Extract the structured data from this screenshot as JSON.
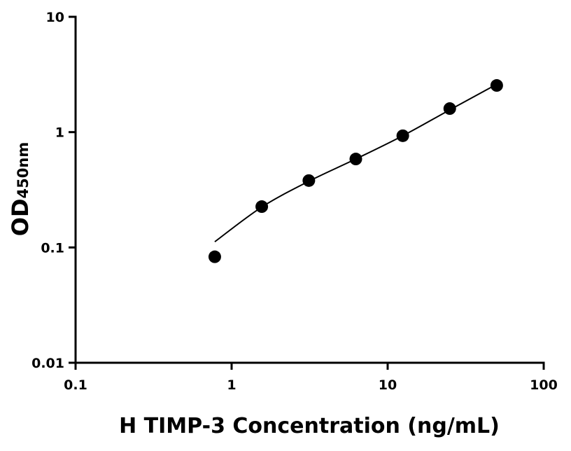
{
  "chart_data": {
    "type": "scatter",
    "title": "",
    "xlabel": "H TIMP-3 Concentration (ng/mL)",
    "ylabel": "OD",
    "ylabel_subscript": "450nm",
    "xscale": "log",
    "yscale": "log",
    "xlim": [
      0.1,
      100
    ],
    "ylim": [
      0.01,
      10
    ],
    "xticks": [
      "0.1",
      "1",
      "10",
      "100"
    ],
    "yticks": [
      "0.01",
      "0.1",
      "1",
      "10"
    ],
    "xtick_values": [
      0.1,
      1,
      10,
      100
    ],
    "ytick_values": [
      0.01,
      0.1,
      1,
      10
    ],
    "grid": false,
    "points": [
      {
        "x": 0.78,
        "y": 0.083
      },
      {
        "x": 1.56,
        "y": 0.226
      },
      {
        "x": 3.125,
        "y": 0.38
      },
      {
        "x": 6.25,
        "y": 0.585
      },
      {
        "x": 12.5,
        "y": 0.93
      },
      {
        "x": 25,
        "y": 1.6
      },
      {
        "x": 50,
        "y": 2.54
      }
    ],
    "fit_curve": [
      {
        "x": 0.78,
        "y": 0.112
      },
      {
        "x": 1.56,
        "y": 0.224
      },
      {
        "x": 3.125,
        "y": 0.375
      },
      {
        "x": 6.25,
        "y": 0.585
      },
      {
        "x": 12.5,
        "y": 0.93
      },
      {
        "x": 25,
        "y": 1.56
      },
      {
        "x": 50,
        "y": 2.6
      }
    ],
    "colors": {
      "points": "#000000",
      "line": "#000000"
    }
  }
}
